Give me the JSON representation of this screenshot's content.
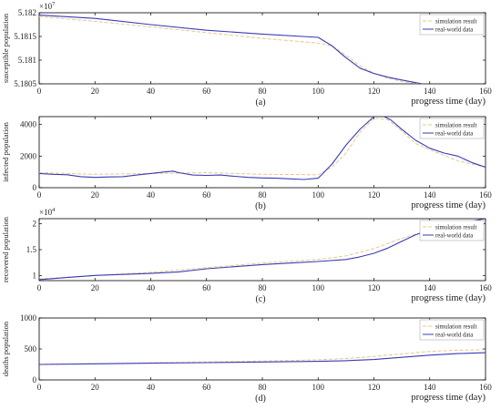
{
  "chart_data": [
    {
      "type": "line",
      "ylabel": "susceptible population",
      "xlabel": "progress time (day)",
      "panel_label": "(a)",
      "y_exponent": "×10",
      "y_exponent_power": "7",
      "xlim": [
        0,
        160
      ],
      "ylim": [
        5.1805,
        5.182
      ],
      "xticks": [
        0,
        20,
        40,
        60,
        80,
        100,
        120,
        140,
        160
      ],
      "yticks": [
        5.1805,
        5.181,
        5.1815,
        5.182
      ],
      "ytick_labels": [
        "5.1805",
        "5.181",
        "5.1815",
        "5.182"
      ],
      "legend_position": "top-right",
      "series": [
        {
          "name": "simulation result",
          "color": "#e8c88e",
          "dash": "4,2",
          "x": [
            0,
            20,
            40,
            60,
            80,
            100,
            105,
            110,
            115,
            120,
            125,
            130,
            140,
            150,
            160
          ],
          "y": [
            5.18192,
            5.18182,
            5.1817,
            5.18158,
            5.18146,
            5.18136,
            5.1813,
            5.1811,
            5.18088,
            5.18072,
            5.18062,
            5.18055,
            5.18047,
            5.18042,
            5.18038
          ]
        },
        {
          "name": "real-world data",
          "color": "#3a3ab8",
          "x": [
            0,
            20,
            40,
            60,
            80,
            100,
            105,
            110,
            115,
            120,
            125,
            130,
            140,
            150,
            160
          ],
          "y": [
            5.18195,
            5.18188,
            5.18175,
            5.18163,
            5.18155,
            5.18148,
            5.1813,
            5.18105,
            5.18083,
            5.18072,
            5.18064,
            5.18058,
            5.18047,
            5.18037,
            5.18027
          ]
        }
      ]
    },
    {
      "type": "line",
      "ylabel": "infected population",
      "xlabel": "progress time (day)",
      "panel_label": "(b)",
      "xlim": [
        0,
        160
      ],
      "ylim": [
        0,
        4500
      ],
      "xticks": [
        0,
        20,
        40,
        60,
        80,
        100,
        120,
        140,
        160
      ],
      "yticks": [
        0,
        2000,
        4000
      ],
      "ytick_labels": [
        "0",
        "2000",
        "4000"
      ],
      "legend_position": "top-right",
      "series": [
        {
          "name": "simulation result",
          "color": "#e8c88e",
          "dash": "4,2",
          "x": [
            0,
            20,
            40,
            60,
            80,
            100,
            105,
            110,
            115,
            120,
            125,
            130,
            135,
            140,
            150,
            160
          ],
          "y": [
            950,
            850,
            900,
            950,
            850,
            820,
            1300,
            2200,
            3500,
            4400,
            4300,
            3600,
            2800,
            2400,
            1700,
            1300
          ]
        },
        {
          "name": "real-world data",
          "color": "#3a3ab8",
          "x": [
            0,
            5,
            10,
            15,
            20,
            25,
            30,
            35,
            40,
            45,
            48,
            50,
            55,
            60,
            65,
            70,
            75,
            80,
            85,
            90,
            95,
            100,
            105,
            110,
            115,
            120,
            123,
            126,
            130,
            135,
            140,
            145,
            150,
            155,
            160
          ],
          "y": [
            900,
            850,
            820,
            700,
            650,
            680,
            700,
            800,
            900,
            1000,
            1050,
            950,
            800,
            780,
            800,
            720,
            650,
            620,
            600,
            560,
            520,
            600,
            1500,
            2700,
            3700,
            4500,
            4550,
            4300,
            3700,
            3000,
            2500,
            2200,
            2000,
            1600,
            1300
          ]
        }
      ]
    },
    {
      "type": "line",
      "ylabel": "recovered population",
      "xlabel": "progress time (day)",
      "panel_label": "(c)",
      "y_exponent": "×10",
      "y_exponent_power": "4",
      "xlim": [
        0,
        160
      ],
      "ylim": [
        0.9,
        2.1
      ],
      "xticks": [
        0,
        20,
        40,
        60,
        80,
        100,
        120,
        140,
        160
      ],
      "yticks": [
        1,
        1.5,
        2
      ],
      "ytick_labels": [
        "1",
        "1.5",
        "2"
      ],
      "legend_position": "top-right",
      "series": [
        {
          "name": "simulation result",
          "color": "#e8c88e",
          "dash": "4,2",
          "x": [
            0,
            20,
            40,
            60,
            80,
            100,
            110,
            120,
            130,
            140,
            150,
            160
          ],
          "y": [
            0.93,
            1.0,
            1.06,
            1.15,
            1.24,
            1.31,
            1.38,
            1.52,
            1.72,
            1.88,
            1.98,
            2.06
          ]
        },
        {
          "name": "real-world data",
          "color": "#3a3ab8",
          "x": [
            0,
            10,
            20,
            30,
            40,
            50,
            60,
            70,
            80,
            90,
            100,
            110,
            115,
            120,
            125,
            130,
            135,
            140,
            145,
            150,
            155,
            160
          ],
          "y": [
            0.92,
            0.96,
            1.0,
            1.02,
            1.04,
            1.07,
            1.13,
            1.17,
            1.21,
            1.24,
            1.27,
            1.31,
            1.36,
            1.43,
            1.53,
            1.66,
            1.79,
            1.88,
            1.95,
            2.0,
            2.05,
            2.1
          ]
        }
      ]
    },
    {
      "type": "line",
      "ylabel": "deaths population",
      "xlabel": "progress time (day)",
      "panel_label": "(d)",
      "xlim": [
        0,
        160
      ],
      "ylim": [
        0,
        1000
      ],
      "xticks": [
        0,
        20,
        40,
        60,
        80,
        100,
        120,
        140,
        160
      ],
      "yticks": [
        0,
        500,
        1000
      ],
      "ytick_labels": [
        "0",
        "500",
        "1000"
      ],
      "legend_position": "top-right",
      "series": [
        {
          "name": "simulation result",
          "color": "#e8c88e",
          "dash": "4,2",
          "x": [
            0,
            20,
            40,
            60,
            80,
            100,
            110,
            120,
            130,
            140,
            150,
            160
          ],
          "y": [
            250,
            262,
            275,
            290,
            305,
            325,
            345,
            380,
            420,
            460,
            480,
            490
          ]
        },
        {
          "name": "real-world data",
          "color": "#3a3ab8",
          "x": [
            0,
            20,
            40,
            60,
            80,
            100,
            110,
            120,
            130,
            140,
            150,
            160
          ],
          "y": [
            250,
            260,
            270,
            280,
            290,
            300,
            310,
            330,
            365,
            400,
            425,
            440
          ]
        }
      ]
    }
  ]
}
